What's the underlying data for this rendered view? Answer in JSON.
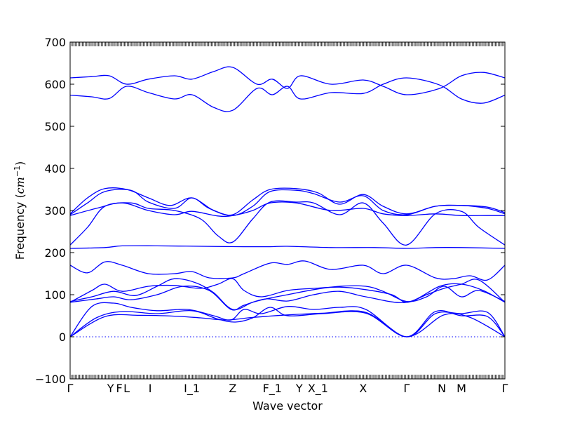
{
  "chart_data": {
    "type": "line",
    "xlabel": "Wave vector",
    "ylabel_main": "Frequency (",
    "ylabel_unit": "cm",
    "ylabel_exp": "−1",
    "ylabel_close": ")",
    "ylim": [
      -100,
      700
    ],
    "yticks": [
      -100,
      0,
      100,
      200,
      300,
      400,
      500,
      600,
      700
    ],
    "xlim": [
      0,
      1
    ],
    "k_points": [
      {
        "label": "Γ",
        "x": 0.0
      },
      {
        "label": "Y",
        "x": 0.093
      },
      {
        "label": "F",
        "x": 0.113
      },
      {
        "label": "L",
        "x": 0.13
      },
      {
        "label": "I",
        "x": 0.184
      },
      {
        "label": "I_1",
        "x": 0.28
      },
      {
        "label": "Z",
        "x": 0.374
      },
      {
        "label": "F_1",
        "x": 0.465
      },
      {
        "label": "Y",
        "x": 0.527
      },
      {
        "label": "X_1",
        "x": 0.57
      },
      {
        "label": "X",
        "x": 0.674
      },
      {
        "label": "Γ",
        "x": 0.774
      },
      {
        "label": "N",
        "x": 0.855
      },
      {
        "label": "M",
        "x": 0.9
      },
      {
        "label": "Γ",
        "x": 1.0
      }
    ],
    "zero_line": true,
    "color": "#0000ff",
    "series": [
      {
        "x": [
          0,
          0.08,
          0.16,
          0.24,
          0.3,
          0.36,
          0.42,
          0.5,
          0.58,
          0.68,
          0.774,
          0.86,
          0.92,
          1.0
        ],
        "values": [
          0,
          48,
          51,
          49,
          45,
          40,
          46,
          52,
          56,
          58,
          0,
          52,
          46,
          0
        ]
      },
      {
        "x": [
          0,
          0.06,
          0.12,
          0.2,
          0.28,
          0.34,
          0.38,
          0.42,
          0.46,
          0.5,
          0.58,
          0.68,
          0.774,
          0.84,
          0.9,
          0.96,
          1.0
        ],
        "values": [
          0,
          45,
          60,
          55,
          62,
          42,
          35,
          45,
          70,
          50,
          55,
          56,
          0,
          60,
          50,
          48,
          0
        ]
      },
      {
        "x": [
          0,
          0.05,
          0.1,
          0.14,
          0.2,
          0.27,
          0.33,
          0.37,
          0.4,
          0.44,
          0.5,
          0.56,
          0.62,
          0.68,
          0.774,
          0.84,
          0.9,
          0.96,
          1.0
        ],
        "values": [
          0,
          72,
          80,
          70,
          62,
          65,
          50,
          40,
          65,
          55,
          72,
          65,
          70,
          65,
          0,
          55,
          55,
          58,
          0
        ]
      },
      {
        "x": [
          0,
          0.06,
          0.1,
          0.14,
          0.2,
          0.26,
          0.32,
          0.37,
          0.4,
          0.45,
          0.5,
          0.56,
          0.62,
          0.68,
          0.774,
          0.85,
          0.9,
          0.95,
          1.0
        ],
        "values": [
          82,
          90,
          95,
          88,
          100,
          120,
          110,
          65,
          75,
          90,
          85,
          100,
          108,
          95,
          82,
          120,
          125,
          110,
          82
        ]
      },
      {
        "x": [
          0,
          0.05,
          0.1,
          0.15,
          0.2,
          0.24,
          0.29,
          0.33,
          0.374,
          0.42,
          0.46,
          0.5,
          0.56,
          0.62,
          0.68,
          0.72,
          0.774,
          0.82,
          0.86,
          0.9,
          0.94,
          1.0
        ],
        "values": [
          84,
          95,
          108,
          98,
          120,
          138,
          128,
          105,
          65,
          82,
          92,
          100,
          112,
          120,
          120,
          108,
          84,
          95,
          120,
          95,
          110,
          84
        ]
      },
      {
        "x": [
          0,
          0.05,
          0.08,
          0.12,
          0.18,
          0.24,
          0.3,
          0.34,
          0.374,
          0.4,
          0.44,
          0.5,
          0.56,
          0.62,
          0.68,
          0.74,
          0.774,
          0.82,
          0.86,
          0.9,
          0.94,
          1.0
        ],
        "values": [
          82,
          110,
          125,
          108,
          120,
          122,
          115,
          125,
          138,
          110,
          95,
          110,
          115,
          118,
          112,
          100,
          82,
          100,
          115,
          125,
          135,
          82
        ]
      },
      {
        "x": [
          0,
          0.04,
          0.08,
          0.12,
          0.18,
          0.24,
          0.28,
          0.32,
          0.374,
          0.4,
          0.46,
          0.5,
          0.54,
          0.6,
          0.674,
          0.72,
          0.774,
          0.84,
          0.88,
          0.92,
          0.96,
          1.0
        ],
        "values": [
          170,
          152,
          178,
          170,
          150,
          150,
          155,
          140,
          140,
          150,
          175,
          172,
          180,
          160,
          170,
          150,
          170,
          140,
          138,
          145,
          135,
          170
        ]
      },
      {
        "x": [
          0,
          0.08,
          0.12,
          0.2,
          0.3,
          0.4,
          0.46,
          0.5,
          0.6,
          0.7,
          0.774,
          0.84,
          0.9,
          1.0
        ],
        "values": [
          210,
          212,
          216,
          216,
          215,
          214,
          214,
          215,
          212,
          212,
          210,
          212,
          212,
          210
        ]
      },
      {
        "x": [
          0,
          0.04,
          0.08,
          0.14,
          0.18,
          0.24,
          0.3,
          0.34,
          0.374,
          0.42,
          0.46,
          0.52,
          0.56,
          0.62,
          0.674,
          0.72,
          0.774,
          0.84,
          0.9,
          0.94,
          1.0
        ],
        "values": [
          218,
          260,
          310,
          318,
          305,
          300,
          280,
          240,
          225,
          280,
          320,
          320,
          318,
          290,
          318,
          270,
          218,
          292,
          298,
          260,
          218
        ]
      },
      {
        "x": [
          0,
          0.06,
          0.12,
          0.18,
          0.24,
          0.28,
          0.34,
          0.374,
          0.42,
          0.46,
          0.52,
          0.6,
          0.674,
          0.72,
          0.774,
          0.84,
          0.9,
          0.96,
          1.0
        ],
        "values": [
          288,
          305,
          318,
          300,
          290,
          298,
          287,
          288,
          300,
          318,
          318,
          300,
          305,
          292,
          288,
          292,
          288,
          288,
          288
        ]
      },
      {
        "x": [
          0,
          0.04,
          0.08,
          0.14,
          0.18,
          0.24,
          0.28,
          0.32,
          0.374,
          0.42,
          0.46,
          0.52,
          0.56,
          0.62,
          0.674,
          0.72,
          0.774,
          0.84,
          0.9,
          0.96,
          1.0
        ],
        "values": [
          290,
          318,
          345,
          348,
          320,
          305,
          330,
          305,
          288,
          310,
          345,
          348,
          340,
          320,
          335,
          300,
          290,
          310,
          312,
          305,
          292
        ]
      },
      {
        "x": [
          0,
          0.04,
          0.08,
          0.13,
          0.18,
          0.23,
          0.28,
          0.33,
          0.374,
          0.42,
          0.46,
          0.52,
          0.57,
          0.62,
          0.674,
          0.72,
          0.774,
          0.84,
          0.9,
          0.96,
          1.0
        ],
        "values": [
          292,
          330,
          352,
          350,
          330,
          312,
          330,
          300,
          290,
          325,
          350,
          352,
          342,
          315,
          338,
          310,
          292,
          310,
          312,
          308,
          295
        ]
      },
      {
        "x": [
          0,
          0.05,
          0.09,
          0.13,
          0.18,
          0.24,
          0.28,
          0.33,
          0.374,
          0.43,
          0.465,
          0.5,
          0.53,
          0.6,
          0.674,
          0.72,
          0.774,
          0.85,
          0.9,
          0.95,
          1.0
        ],
        "values": [
          574,
          570,
          566,
          595,
          580,
          565,
          575,
          545,
          538,
          590,
          575,
          595,
          565,
          580,
          578,
          600,
          615,
          598,
          565,
          555,
          574
        ]
      },
      {
        "x": [
          0,
          0.05,
          0.09,
          0.13,
          0.18,
          0.24,
          0.28,
          0.33,
          0.374,
          0.43,
          0.465,
          0.5,
          0.53,
          0.6,
          0.674,
          0.72,
          0.774,
          0.85,
          0.9,
          0.95,
          1.0
        ],
        "values": [
          615,
          618,
          620,
          600,
          612,
          620,
          612,
          630,
          640,
          600,
          612,
          590,
          620,
          600,
          610,
          595,
          575,
          590,
          620,
          628,
          615
        ]
      }
    ]
  }
}
